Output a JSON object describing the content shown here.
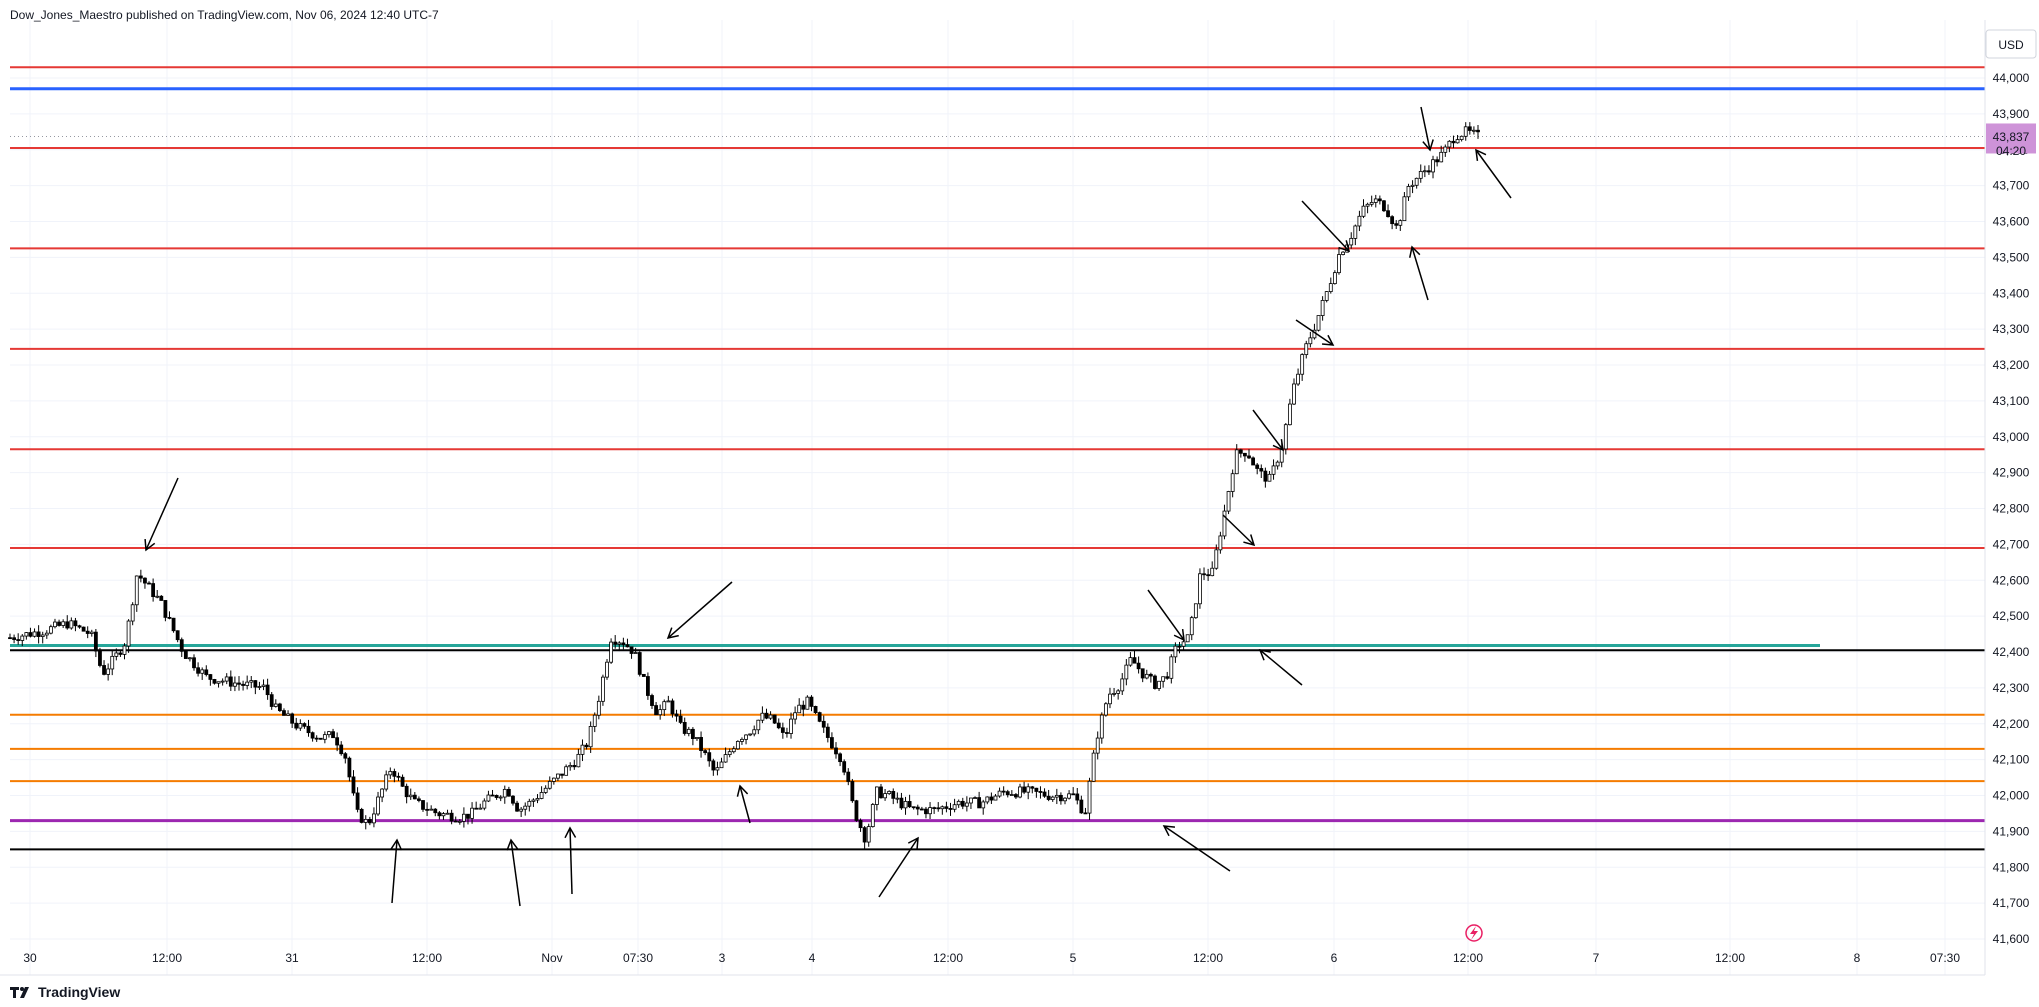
{
  "header": {
    "text": "Dow_Jones_Maestro published on TradingView.com, Nov 06, 2024 12:40 UTC-7"
  },
  "currency_button": {
    "label": "USD"
  },
  "current_price": {
    "value": "43,837",
    "countdown": "04:20",
    "color": "#ce93d8"
  },
  "footer": {
    "brand": "TradingView"
  },
  "colors": {
    "red_level": "#e53935",
    "orange_level": "#f57c00",
    "purple_level": "#9c27b0",
    "teal_level": "#26a69a",
    "black_level": "#000000",
    "blue_level": "#2962ff",
    "candle": "#000000"
  },
  "icons": {
    "replay": "lightning-icon"
  },
  "chart_data": {
    "type": "candlestick",
    "title": "",
    "xlabel": "",
    "ylabel": "",
    "currency": "USD",
    "ylim": [
      41600,
      44050
    ],
    "y_ticks": [
      "44,000",
      "43,900",
      "43,800",
      "43,700",
      "43,600",
      "43,500",
      "43,400",
      "43,300",
      "43,200",
      "43,100",
      "43,000",
      "42,900",
      "42,800",
      "42,700",
      "42,600",
      "42,500",
      "42,400",
      "42,300",
      "42,200",
      "42,100",
      "42,000",
      "41,900",
      "41,800",
      "41,700",
      "41,600"
    ],
    "x_ticks": [
      "30",
      "12:00",
      "31",
      "12:00",
      "Nov",
      "07:30",
      "3",
      "4",
      "12:00",
      "5",
      "12:00",
      "6",
      "12:00",
      "7",
      "12:00",
      "8",
      "07:30"
    ],
    "grid": true,
    "horizontal_levels": [
      {
        "price": 44030,
        "color": "red"
      },
      {
        "price": 43970,
        "color": "blue"
      },
      {
        "price": 43805,
        "color": "red"
      },
      {
        "price": 43525,
        "color": "red"
      },
      {
        "price": 43245,
        "color": "red"
      },
      {
        "price": 42965,
        "color": "red"
      },
      {
        "price": 42690,
        "color": "red"
      },
      {
        "price": 42418,
        "color": "teal"
      },
      {
        "price": 42405,
        "color": "black"
      },
      {
        "price": 42225,
        "color": "orange"
      },
      {
        "price": 42130,
        "color": "orange"
      },
      {
        "price": 42040,
        "color": "orange"
      },
      {
        "price": 41930,
        "color": "purple"
      },
      {
        "price": 41850,
        "color": "black"
      }
    ],
    "price_path": [
      [
        0,
        42440
      ],
      [
        3,
        42460
      ],
      [
        5,
        42480
      ],
      [
        7,
        42450
      ],
      [
        8,
        42340
      ],
      [
        9,
        42380
      ],
      [
        10,
        42430
      ],
      [
        11,
        42620
      ],
      [
        13,
        42540
      ],
      [
        14,
        42470
      ],
      [
        15,
        42400
      ],
      [
        17,
        42330
      ],
      [
        20,
        42310
      ],
      [
        22,
        42300
      ],
      [
        23,
        42240
      ],
      [
        25,
        42190
      ],
      [
        27,
        42160
      ],
      [
        28,
        42170
      ],
      [
        29,
        42110
      ],
      [
        30,
        41950
      ],
      [
        31,
        41920
      ],
      [
        32,
        42000
      ],
      [
        33,
        42080
      ],
      [
        34,
        42020
      ],
      [
        35,
        41980
      ],
      [
        37,
        41950
      ],
      [
        39,
        41940
      ],
      [
        40,
        41950
      ],
      [
        41,
        41980
      ],
      [
        43,
        42020
      ],
      [
        44,
        41960
      ],
      [
        45,
        41980
      ],
      [
        47,
        42040
      ],
      [
        49,
        42100
      ],
      [
        50,
        42150
      ],
      [
        51,
        42280
      ],
      [
        52,
        42440
      ],
      [
        53,
        42430
      ],
      [
        54,
        42400
      ],
      [
        55,
        42300
      ],
      [
        56,
        42230
      ],
      [
        57,
        42260
      ],
      [
        58,
        42190
      ],
      [
        59,
        42170
      ],
      [
        60,
        42120
      ],
      [
        61,
        42060
      ],
      [
        62,
        42110
      ],
      [
        63,
        42160
      ],
      [
        64,
        42180
      ],
      [
        65,
        42220
      ],
      [
        66,
        42210
      ],
      [
        67,
        42160
      ],
      [
        68,
        42240
      ],
      [
        69,
        42260
      ],
      [
        70,
        42200
      ],
      [
        71,
        42150
      ],
      [
        72,
        42100
      ],
      [
        73,
        41960
      ],
      [
        74,
        41880
      ],
      [
        75,
        42010
      ],
      [
        76,
        42000
      ],
      [
        77,
        41980
      ],
      [
        78,
        41960
      ],
      [
        80,
        41960
      ],
      [
        82,
        41980
      ],
      [
        84,
        41980
      ],
      [
        86,
        42010
      ],
      [
        88,
        42010
      ],
      [
        90,
        42000
      ],
      [
        92,
        42000
      ],
      [
        93,
        41950
      ],
      [
        94,
        42160
      ],
      [
        95,
        42280
      ],
      [
        96,
        42310
      ],
      [
        97,
        42380
      ],
      [
        98,
        42340
      ],
      [
        99,
        42310
      ],
      [
        100,
        42330
      ],
      [
        101,
        42420
      ],
      [
        102,
        42440
      ],
      [
        103,
        42620
      ],
      [
        104,
        42620
      ],
      [
        105,
        42780
      ],
      [
        106,
        42950
      ],
      [
        107,
        42960
      ],
      [
        108,
        42900
      ],
      [
        109,
        42880
      ],
      [
        110,
        42970
      ],
      [
        111,
        43130
      ],
      [
        112,
        43240
      ],
      [
        113,
        43320
      ],
      [
        114,
        43410
      ],
      [
        115,
        43510
      ],
      [
        116,
        43560
      ],
      [
        117,
        43630
      ],
      [
        118,
        43660
      ],
      [
        119,
        43640
      ],
      [
        120,
        43580
      ],
      [
        121,
        43700
      ],
      [
        122,
        43730
      ],
      [
        123,
        43760
      ],
      [
        124,
        43790
      ],
      [
        125,
        43840
      ],
      [
        126,
        43850
      ],
      [
        127,
        43837
      ]
    ],
    "annotations": "black arrows pointing at touches of the horizontal levels"
  }
}
